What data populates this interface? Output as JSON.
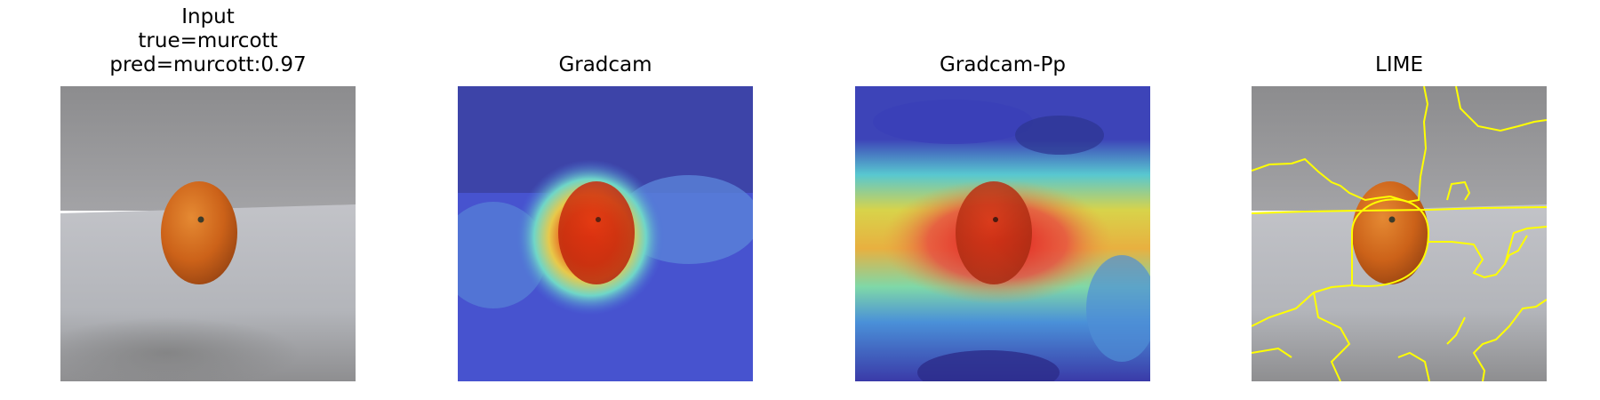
{
  "figure": {
    "panels": [
      {
        "id": "input",
        "title_lines": [
          "Input",
          "true=murcott",
          "pred=murcott:0.97"
        ],
        "true_label": "murcott",
        "pred_label": "murcott",
        "pred_score": 0.97
      },
      {
        "id": "gradcam",
        "title_lines": [
          "Gradcam"
        ]
      },
      {
        "id": "gradcam-pp",
        "title_lines": [
          "Gradcam-Pp"
        ]
      },
      {
        "id": "lime",
        "title_lines": [
          "LIME"
        ]
      }
    ],
    "colors": {
      "background": "#ffffff",
      "wall": "#8a8a8c",
      "table": "#b9bbc0",
      "fruit": "#d46a1e",
      "heat_low": "#3b3fb5",
      "heat_high": "#e02a10",
      "lime_boundary": "#ffff00"
    }
  }
}
